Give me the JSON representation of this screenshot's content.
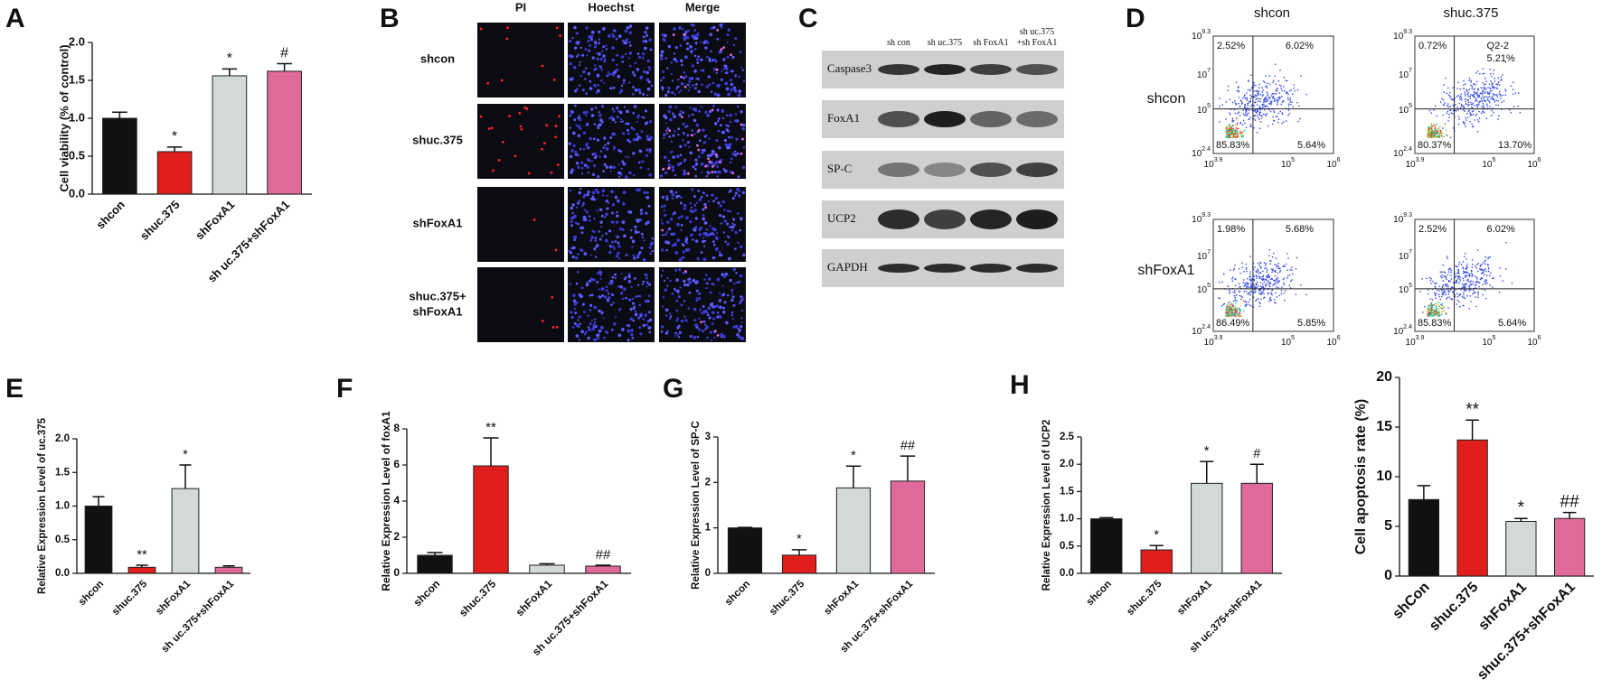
{
  "chart_data": [
    {
      "type": "bar",
      "panel_label": "A",
      "y_label": "Cell viability (% of control)",
      "categories": [
        "shcon",
        "shuc.375",
        "shFoxA1",
        "sh uc.375+shFoxA1"
      ],
      "values": [
        1.0,
        0.56,
        1.56,
        1.62
      ],
      "errors": [
        0.08,
        0.06,
        0.09,
        0.1
      ],
      "significance": [
        null,
        "*",
        "*",
        "#"
      ],
      "colors": [
        "#111111",
        "#e01e1b",
        "#d3d8d8",
        "#e06a9b"
      ],
      "ylim": [
        0,
        2
      ],
      "yticks": [
        {
          "value": 0,
          "label": "0.0"
        },
        0.5,
        {
          "value": 1,
          "label": "1.0"
        },
        1.5,
        {
          "value": 2,
          "label": "2.0"
        }
      ]
    },
    {
      "type": "bar",
      "panel_label": "E",
      "y_label": "Relative Expression Level of uc.375",
      "categories": [
        "shcon",
        "shuc.375",
        "shFoxA1",
        "sh uc.375+shFoxA1"
      ],
      "values": [
        1.0,
        0.09,
        1.26,
        0.09
      ],
      "errors": [
        0.14,
        0.03,
        0.35,
        0.02
      ],
      "significance": [
        null,
        "**",
        "*",
        null
      ],
      "colors": [
        "#111111",
        "#e01e1b",
        "#d3d8d8",
        "#e06a9b"
      ],
      "ylim": [
        0,
        2
      ],
      "yticks": [
        {
          "value": 0,
          "label": "0.0"
        },
        0.5,
        {
          "value": 1,
          "label": "1.0"
        },
        1.5,
        {
          "value": 2,
          "label": "2.0"
        }
      ]
    },
    {
      "type": "bar",
      "panel_label": "F",
      "y_label": "Relative Expression Level of foxA1",
      "categories": [
        "shcon",
        "shuc.375",
        "shFoxA1",
        "sh uc.375+shFoxA1"
      ],
      "values": [
        1.0,
        5.95,
        0.45,
        0.4
      ],
      "errors": [
        0.15,
        1.55,
        0.08,
        0.05
      ],
      "significance": [
        null,
        "**",
        null,
        "##"
      ],
      "colors": [
        "#111111",
        "#e01e1b",
        "#d3d8d8",
        "#e06a9b"
      ],
      "ylim": [
        0,
        8
      ],
      "yticks": [
        0,
        2,
        4,
        6,
        8
      ]
    },
    {
      "type": "bar",
      "panel_label": "G",
      "y_label": "Relative Expression Level of SP-C",
      "categories": [
        "shcon",
        "shuc.375",
        "shFoxA1",
        "sh uc.375+shFoxA1"
      ],
      "values": [
        1.0,
        0.4,
        1.88,
        2.03
      ],
      "errors": [
        0.01,
        0.12,
        0.48,
        0.55
      ],
      "significance": [
        null,
        "*",
        "*",
        "##"
      ],
      "colors": [
        "#111111",
        "#e01e1b",
        "#d3d8d8",
        "#e06a9b"
      ],
      "ylim": [
        0,
        3
      ],
      "yticks": [
        0,
        1,
        2,
        3
      ]
    },
    {
      "type": "bar",
      "panel_label": "H",
      "y_label": "Relative Expression Level of UCP2",
      "categories": [
        "shcon",
        "shuc.375",
        "shFoxA1",
        "sh uc.375+shFoxA1"
      ],
      "values": [
        1.0,
        0.43,
        1.65,
        1.65
      ],
      "errors": [
        0.02,
        0.08,
        0.4,
        0.35
      ],
      "significance": [
        null,
        "*",
        "*",
        "#"
      ],
      "colors": [
        "#111111",
        "#e01e1b",
        "#d3d8d8",
        "#e06a9b"
      ],
      "ylim": [
        0,
        2.5
      ],
      "yticks": [
        {
          "value": 0,
          "label": "0.0"
        },
        0.5,
        {
          "value": 1,
          "label": "1.0"
        },
        1.5,
        {
          "value": 2,
          "label": "2.0"
        },
        2.5
      ]
    },
    {
      "type": "bar",
      "y_label": "Cell apoptosis rate (%)",
      "categories": [
        "shCon",
        "shuc.375",
        "shFoxA1",
        "shuc.375+shFoxA1"
      ],
      "values": [
        7.7,
        13.7,
        5.5,
        5.8
      ],
      "errors": [
        1.4,
        2.0,
        0.3,
        0.6
      ],
      "significance": [
        null,
        "**",
        "*",
        "##"
      ],
      "colors": [
        "#111111",
        "#e01e1b",
        "#d3d8d8",
        "#e06a9b"
      ],
      "ylim": [
        0,
        20
      ],
      "yticks": [
        0,
        5,
        10,
        15,
        20
      ]
    }
  ],
  "microscopy": {
    "panel_label": "B",
    "columns": [
      "PI",
      "Hoechst",
      "Merge"
    ],
    "rows": [
      [
        "shcon"
      ],
      [
        "shuc.375"
      ],
      [
        "shFoxA1"
      ],
      [
        "shuc.375+",
        "shFoxA1"
      ]
    ]
  },
  "western_blot": {
    "panel_label": "C",
    "lanes": [
      [
        "sh con"
      ],
      [
        "sh uc.375"
      ],
      [
        "sh FoxA1"
      ],
      [
        "sh   uc.375",
        "+sh FoxA1"
      ]
    ],
    "proteins": [
      "Caspase3",
      "FoxA1",
      "SP-C",
      "UCP2",
      "GAPDH"
    ]
  },
  "flow_cytometry": {
    "panel_label": "D",
    "column_titles": [
      "shcon",
      "shuc.375"
    ],
    "row_titles": [
      "shcon",
      "shFoxA1"
    ],
    "tick_base": "10",
    "y_tick_exponents": [
      "9.3",
      "7",
      "5",
      "2.4"
    ],
    "x_tick_exponents": [
      "3.9",
      "5",
      "6"
    ],
    "plots": [
      {
        "upper_left": "2.52%",
        "upper_right": [
          "6.02%"
        ],
        "lower_left": "85.83%",
        "lower_right": "5.64%"
      },
      {
        "upper_left": "0.72%",
        "upper_right": [
          "Q2-2",
          "5.21%"
        ],
        "lower_left": "80.37%",
        "lower_right": "13.70%"
      },
      {
        "upper_left": "1.98%",
        "upper_right": [
          "5.68%"
        ],
        "lower_left": "86.49%",
        "lower_right": "5.85%"
      },
      {
        "upper_left": "2.52%",
        "upper_right": [
          "6.02%"
        ],
        "lower_left": "85.83%",
        "lower_right": "5.64%"
      }
    ]
  }
}
